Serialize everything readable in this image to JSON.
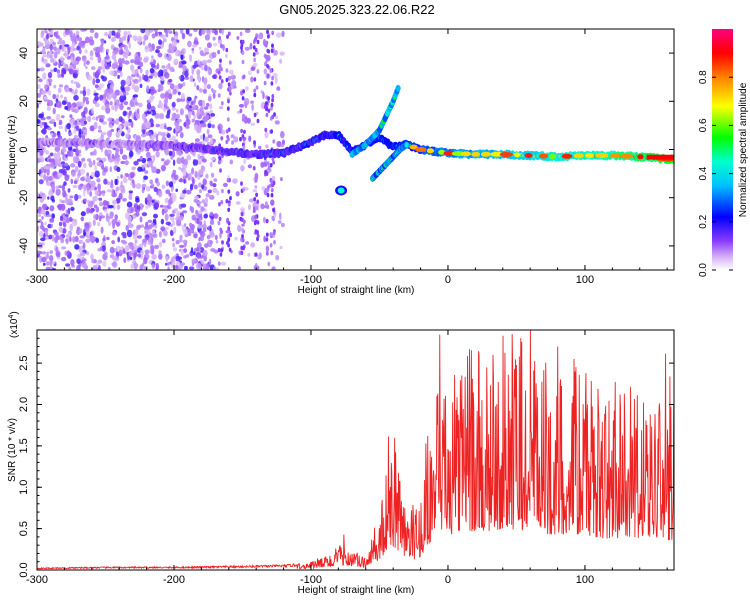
{
  "page": {
    "title": "GN05.2025.323.22.06.R22"
  },
  "chart_data": [
    {
      "type": "heatmap",
      "panel": "top",
      "title": "GN05.2025.323.22.06.R22",
      "xlabel": "Height of straight line (km)",
      "ylabel": "Frequency (Hz)",
      "xlim": [
        -300,
        165
      ],
      "ylim": [
        -50,
        50
      ],
      "x_ticks": [
        -300,
        -200,
        -100,
        0,
        100
      ],
      "y_ticks": [
        -40,
        -20,
        0,
        20,
        40
      ],
      "colorbar": {
        "label": "Normalized spectral amplitude",
        "range": [
          0.0,
          1.0
        ],
        "ticks": [
          "0.0",
          "0.2",
          "0.4",
          "0.6",
          "0.8"
        ],
        "colors": [
          "#ffffff",
          "#c8a0f0",
          "#6a00ff",
          "#0000ff",
          "#00ffff",
          "#00ff00",
          "#ffff00",
          "#ff8000",
          "#ff0000",
          "#ff0080"
        ]
      },
      "main_trace": {
        "x": [
          -300,
          -250,
          -220,
          -200,
          -180,
          -160,
          -140,
          -120,
          -100,
          -90,
          -80,
          -70,
          -60,
          -50,
          -40,
          -30,
          -20,
          0,
          20,
          40,
          60,
          80,
          100,
          120,
          140,
          160
        ],
        "y": [
          3,
          2.5,
          2,
          1.5,
          0.5,
          -1,
          -2,
          -1.5,
          3,
          6,
          6,
          -1,
          2,
          5,
          1,
          2,
          0,
          -1.5,
          -2,
          -2,
          -2.5,
          -3,
          -2.5,
          -2.5,
          -3,
          -4
        ]
      },
      "branch_up": {
        "x": [
          -70,
          -60,
          -50,
          -45,
          -40,
          -36
        ],
        "y": [
          -2,
          2,
          8,
          14,
          20,
          26
        ]
      },
      "branch_down": {
        "x": [
          -55,
          -50,
          -45,
          -40,
          -35,
          -30
        ],
        "y": [
          -12,
          -9,
          -6,
          -3,
          0,
          2
        ]
      },
      "isolated_blob": {
        "x": -78,
        "y": -17
      }
    },
    {
      "type": "line",
      "panel": "bottom",
      "xlabel": "Height of straight line (km)",
      "ylabel": "SNR (10 * v/v)",
      "y_multiplier": "(x10",
      "y_multiplier_exp": "4",
      "xlim": [
        -300,
        165
      ],
      "ylim": [
        0,
        2.9
      ],
      "x_ticks": [
        -300,
        -200,
        -100,
        0,
        100
      ],
      "y_ticks": [
        "0.0",
        "0.5",
        "1.0",
        "1.5",
        "2.0",
        "2.5"
      ],
      "series": [
        {
          "color": "#ee2222",
          "envelope_x": [
            -300,
            -250,
            -200,
            -150,
            -120,
            -110,
            -100,
            -90,
            -80,
            -75,
            -70,
            -60,
            -55,
            -50,
            -45,
            -40,
            -35,
            -30,
            -25,
            -20,
            -15,
            -10,
            -5,
            0,
            10,
            20,
            30,
            40,
            50,
            60,
            70,
            80,
            90,
            100,
            110,
            120,
            130,
            140,
            150,
            160,
            165
          ],
          "envelope_y": [
            0.02,
            0.03,
            0.03,
            0.04,
            0.05,
            0.06,
            0.08,
            0.12,
            0.2,
            0.25,
            0.18,
            0.1,
            0.3,
            0.5,
            0.85,
            1.1,
            0.8,
            0.6,
            0.5,
            0.65,
            1.2,
            1.5,
            1.6,
            1.65,
            1.8,
            1.9,
            1.85,
            2.0,
            1.95,
            1.85,
            1.75,
            1.7,
            1.75,
            1.65,
            1.55,
            1.5,
            1.6,
            1.5,
            1.55,
            1.45,
            1.4
          ],
          "peaks": [
            {
              "x": 10,
              "y": 2.35
            },
            {
              "x": 33,
              "y": 2.6
            },
            {
              "x": 47,
              "y": 2.85
            },
            {
              "x": 53,
              "y": 2.8
            },
            {
              "x": 60,
              "y": 2.95
            },
            {
              "x": 80,
              "y": 2.7
            },
            {
              "x": 92,
              "y": 2.55
            }
          ]
        }
      ]
    }
  ]
}
